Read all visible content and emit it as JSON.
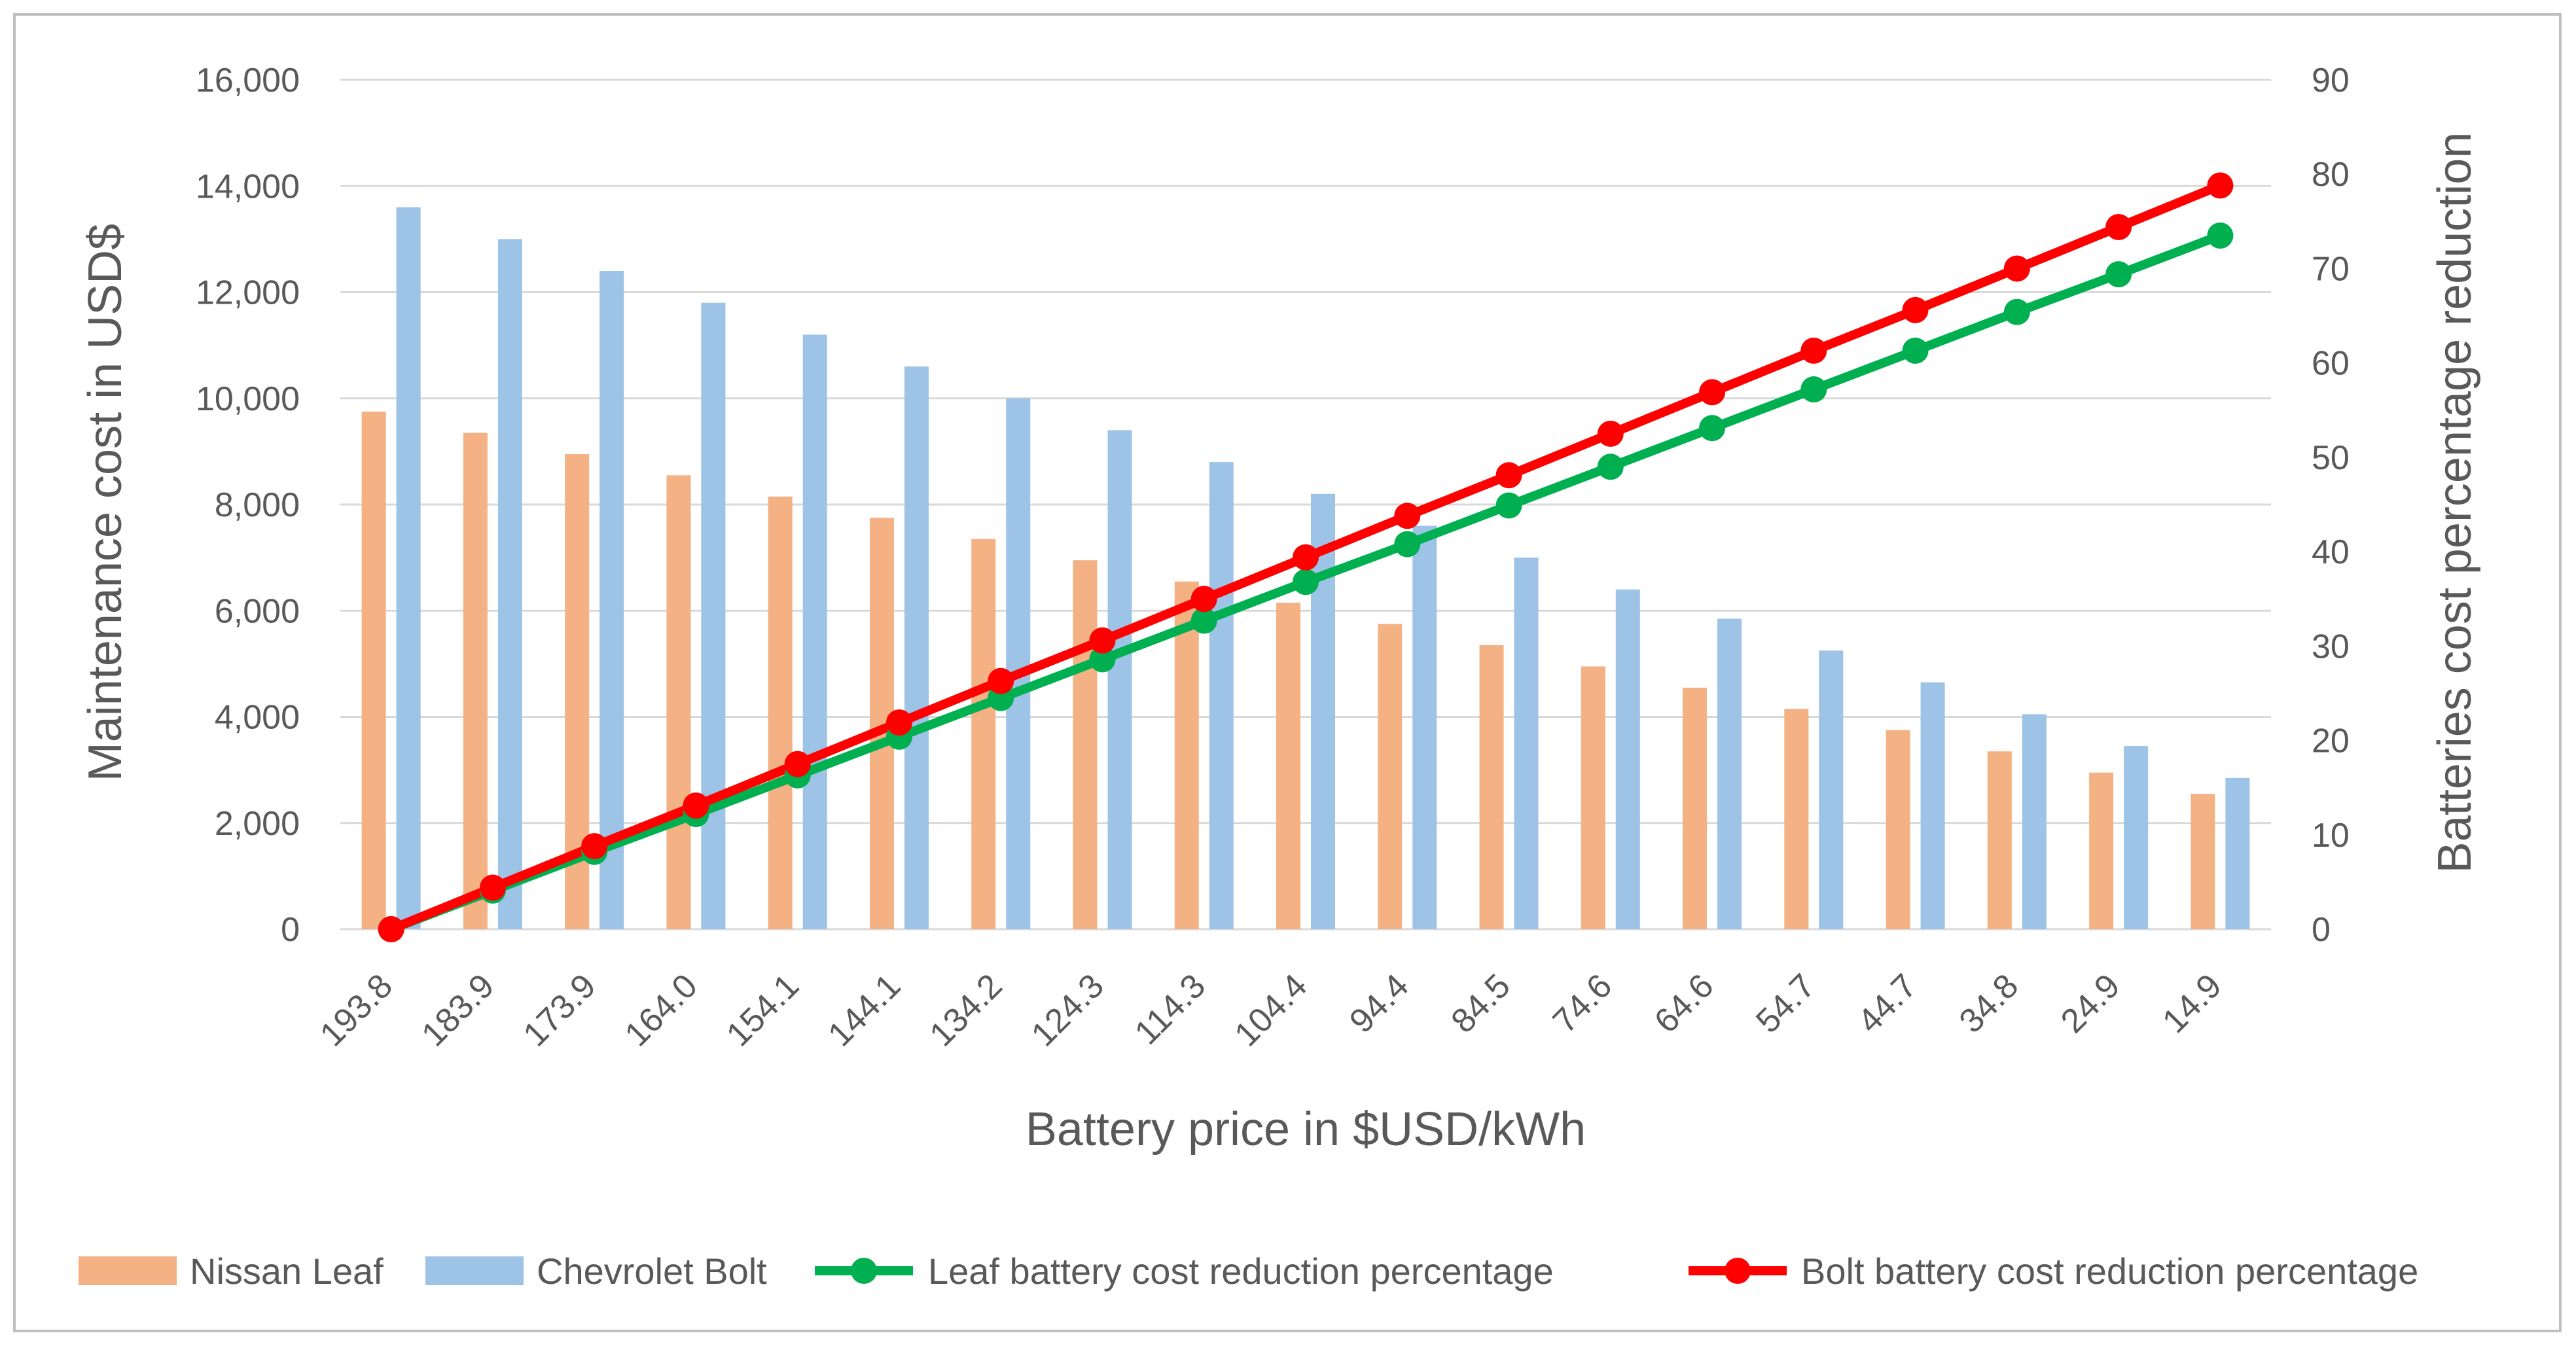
{
  "chart_data": {
    "type": "bar",
    "title": "",
    "categories": [
      "193.8",
      "183.9",
      "173.9",
      "164.0",
      "154.1",
      "144.1",
      "134.2",
      "124.3",
      "114.3",
      "104.4",
      "94.4",
      "84.5",
      "74.6",
      "64.6",
      "54.7",
      "44.7",
      "34.8",
      "24.9",
      "14.9"
    ],
    "xlabel": "Battery price in $USD/kWh",
    "ylabel": "Maintenance cost in USD$",
    "y2label": "Batteries cost percentage reduction",
    "ylim": [
      0,
      16000
    ],
    "y2lim": [
      0,
      90
    ],
    "yticks": [
      "0",
      "2,000",
      "4,000",
      "6,000",
      "8,000",
      "10,000",
      "12,000",
      "14,000",
      "16,000"
    ],
    "y2ticks": [
      "0",
      "10",
      "20",
      "30",
      "40",
      "50",
      "60",
      "70",
      "80",
      "90"
    ],
    "ytick_values": [
      0,
      2000,
      4000,
      6000,
      8000,
      10000,
      12000,
      14000,
      16000
    ],
    "y2tick_values": [
      0,
      10,
      20,
      30,
      40,
      50,
      60,
      70,
      80,
      90
    ],
    "grid": true,
    "legend_position": "bottom",
    "series": [
      {
        "name": "Nissan Leaf",
        "kind": "bar",
        "axis": "left",
        "color": "#F4B183",
        "values": [
          9750,
          9350,
          8950,
          8550,
          8150,
          7750,
          7350,
          6950,
          6550,
          6150,
          5750,
          5350,
          4950,
          4550,
          4150,
          3750,
          3350,
          2950,
          2550
        ]
      },
      {
        "name": "Chevrolet Bolt",
        "kind": "bar",
        "axis": "left",
        "color": "#9DC3E6",
        "values": [
          13600,
          13000,
          12400,
          11800,
          11200,
          10600,
          10000,
          9400,
          8800,
          8200,
          7600,
          7000,
          6400,
          5850,
          5250,
          4650,
          4050,
          3450,
          2850
        ]
      },
      {
        "name": "Leaf battery cost reduction percentage",
        "kind": "line",
        "axis": "right",
        "color": "#00B050",
        "values": [
          0,
          4.1,
          8.2,
          12.2,
          16.3,
          20.4,
          24.5,
          28.6,
          32.7,
          36.8,
          40.8,
          44.9,
          49.0,
          53.1,
          57.2,
          61.3,
          65.4,
          69.4,
          73.5
        ]
      },
      {
        "name": "Bolt battery cost reduction percentage",
        "kind": "line",
        "axis": "right",
        "color": "#FF0000",
        "values": [
          0,
          4.4,
          8.8,
          13.1,
          17.5,
          21.9,
          26.3,
          30.6,
          35.0,
          39.4,
          43.8,
          48.1,
          52.5,
          56.9,
          61.3,
          65.6,
          70.0,
          74.4,
          78.8
        ]
      }
    ]
  },
  "legend": {
    "items": [
      {
        "label": "Nissan Leaf"
      },
      {
        "label": "Chevrolet Bolt"
      },
      {
        "label": "Leaf battery cost reduction percentage"
      },
      {
        "label": "Bolt battery cost reduction percentage"
      }
    ]
  },
  "colors": {
    "grid": "#D9D9D9",
    "border": "#BFBFBF",
    "text": "#595959"
  }
}
